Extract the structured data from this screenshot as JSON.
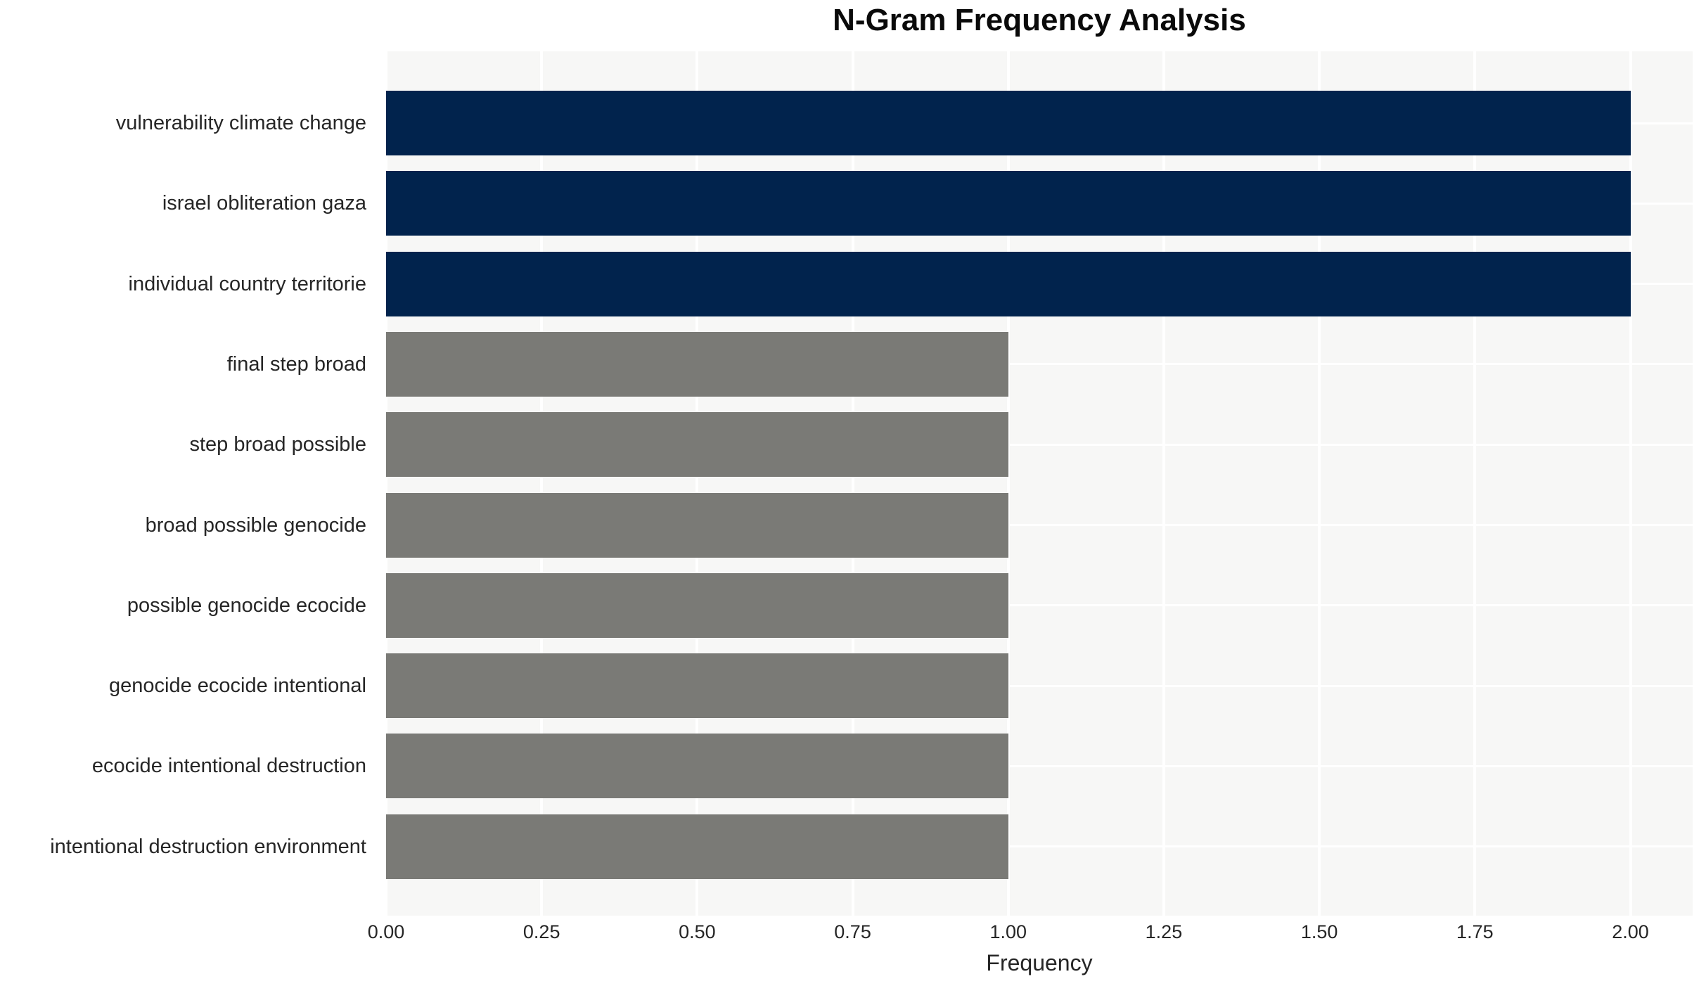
{
  "chart_data": {
    "type": "bar",
    "orientation": "horizontal",
    "title": "N-Gram Frequency Analysis",
    "xlabel": "Frequency",
    "ylabel": "",
    "categories": [
      "vulnerability climate change",
      "israel obliteration gaza",
      "individual country territorie",
      "final step broad",
      "step broad possible",
      "broad possible genocide",
      "possible genocide ecocide",
      "genocide ecocide intentional",
      "ecocide intentional destruction",
      "intentional destruction environment"
    ],
    "values": [
      2,
      2,
      2,
      1,
      1,
      1,
      1,
      1,
      1,
      1
    ],
    "bar_colors": [
      "#01234d",
      "#01234d",
      "#01234d",
      "#7a7a76",
      "#7a7a76",
      "#7a7a76",
      "#7a7a76",
      "#7a7a76",
      "#7a7a76",
      "#7a7a76"
    ],
    "xlim": [
      0,
      2.1
    ],
    "xtick_values": [
      0,
      0.25,
      0.5,
      0.75,
      1.0,
      1.25,
      1.5,
      1.75,
      2.0
    ],
    "xtick_labels": [
      "0.00",
      "0.25",
      "0.50",
      "0.75",
      "1.00",
      "1.25",
      "1.50",
      "1.75",
      "2.00"
    ],
    "grid": true,
    "grid_color": "#ffffff",
    "legend": false,
    "colors": {
      "high_frequency_bar": "#01234d",
      "low_frequency_bar": "#7a7a76",
      "plot_background": "#f7f7f6",
      "page_background": "#ffffff",
      "text": "#262626",
      "title_text": "#0a0a0a"
    }
  }
}
